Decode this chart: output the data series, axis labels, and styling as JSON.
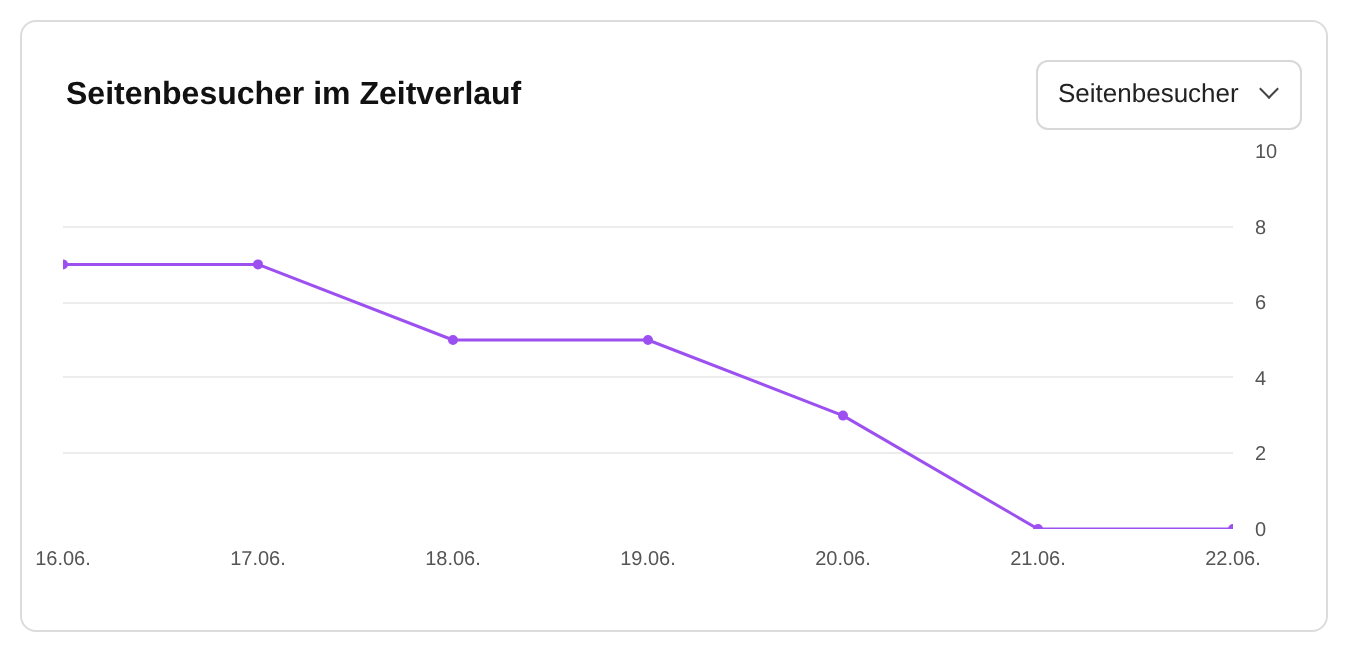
{
  "chart_data": {
    "type": "line",
    "title": "Seitenbesucher im Zeitverlauf",
    "annotations": [
      "Seitenbesucher"
    ],
    "categories": [
      "16.06.",
      "17.06.",
      "18.06.",
      "19.06.",
      "20.06.",
      "21.06.",
      "22.06."
    ],
    "series": [
      {
        "color": "#9d50f0",
        "values": [
          7,
          7,
          5,
          5,
          3,
          0,
          0
        ]
      }
    ],
    "ylim": [
      0,
      10
    ],
    "yticks": [
      0,
      2,
      4,
      6,
      8,
      10
    ],
    "grid": "y",
    "marker": "circle",
    "line_style": "solid"
  }
}
